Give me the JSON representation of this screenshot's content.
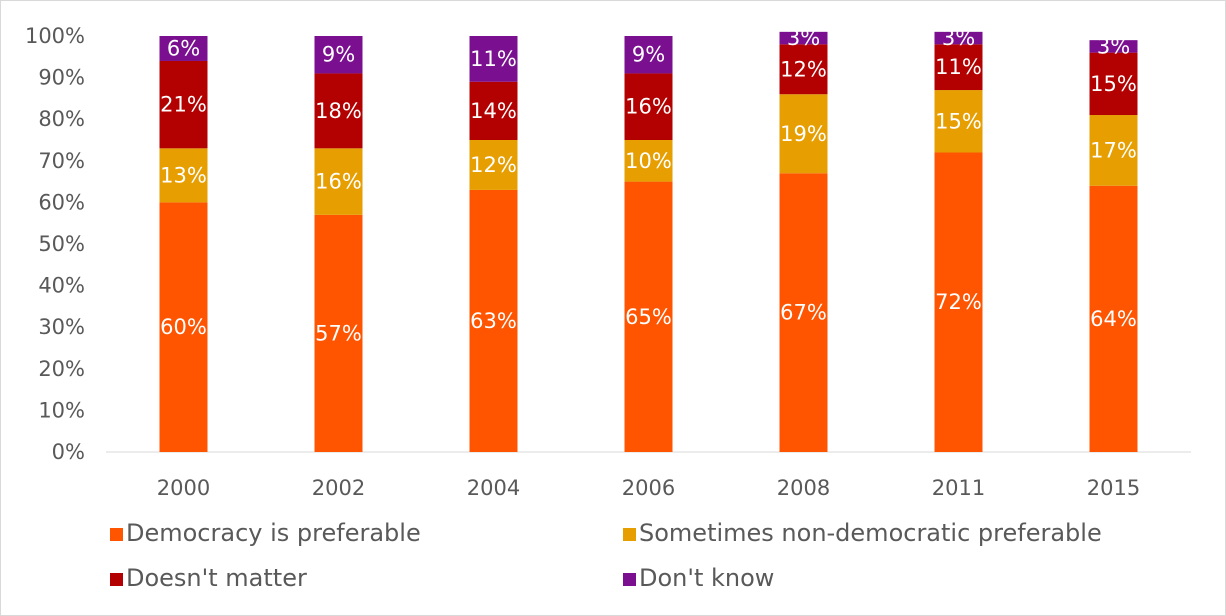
{
  "chart_data": {
    "type": "bar",
    "stacked": true,
    "title": "",
    "xlabel": "",
    "ylabel": "",
    "ylim": [
      0,
      100
    ],
    "y_ticks": [
      "0%",
      "10%",
      "20%",
      "30%",
      "40%",
      "50%",
      "60%",
      "70%",
      "80%",
      "90%",
      "100%"
    ],
    "grid": false,
    "legend": "bottom",
    "categories": [
      "2000",
      "2002",
      "2004",
      "2006",
      "2008",
      "2011",
      "2015"
    ],
    "series": [
      {
        "name": "Democracy is preferable",
        "color": "#ff5400",
        "values": [
          60,
          57,
          63,
          65,
          67,
          72,
          64
        ]
      },
      {
        "name": "Sometimes non-democratic preferable",
        "color": "#e69e00",
        "values": [
          13,
          16,
          12,
          10,
          19,
          15,
          17
        ]
      },
      {
        "name": "Doesn't matter",
        "color": "#b30000",
        "values": [
          21,
          18,
          14,
          16,
          12,
          11,
          15
        ]
      },
      {
        "name": "Don't know",
        "color": "#7a0f8f",
        "values": [
          6,
          9,
          11,
          9,
          3,
          3,
          3
        ]
      }
    ]
  }
}
